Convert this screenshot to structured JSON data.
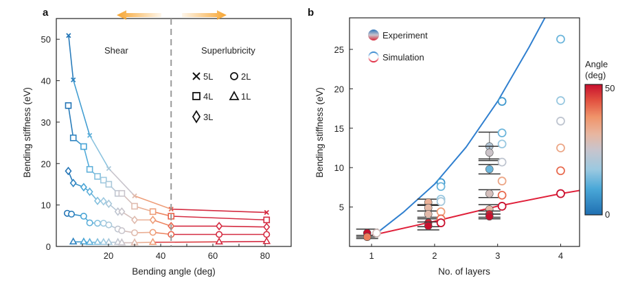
{
  "chart_data": [
    {
      "panel": "a",
      "type": "line",
      "title": "",
      "xlabel": "Bending angle (deg)",
      "ylabel": "Bending stiffness (eV)",
      "xlim": [
        0,
        90
      ],
      "ylim": [
        0,
        55
      ],
      "xticks": [
        20,
        40,
        60,
        80
      ],
      "yticks": [
        0,
        10,
        20,
        30,
        40,
        50
      ],
      "grid": false,
      "color_mapping": "line and marker color varies with bending angle: blue (small angle) to red (large angle)",
      "annotations": {
        "divider_angle": 44,
        "left_region": "Shear",
        "right_region": "Superlubricity"
      },
      "legend": {
        "placement": "upper-right",
        "entries": [
          {
            "label": "5L",
            "marker": "x"
          },
          {
            "label": "2L",
            "marker": "circle"
          },
          {
            "label": "4L",
            "marker": "square"
          },
          {
            "label": "1L",
            "marker": "triangle"
          },
          {
            "label": "3L",
            "marker": "diamond"
          }
        ]
      },
      "series": [
        {
          "name": "5L",
          "marker": "x",
          "x": [
            4.7,
            6.5,
            12.8,
            20.1,
            30.0,
            44.0,
            80.6
          ],
          "y": [
            50.9,
            40.2,
            26.8,
            18.8,
            12.2,
            9.0,
            8.2
          ]
        },
        {
          "name": "4L",
          "marker": "square",
          "x": [
            4.6,
            6.5,
            10.5,
            12.8,
            15.8,
            18.1,
            20.1,
            23.6,
            25.1,
            30.0,
            37.0,
            44.0,
            80.6
          ],
          "y": [
            34.0,
            26.2,
            24.1,
            18.6,
            16.9,
            16.0,
            15.0,
            12.8,
            12.8,
            9.7,
            8.4,
            7.3,
            6.4
          ]
        },
        {
          "name": "3L",
          "marker": "diamond",
          "x": [
            4.6,
            6.5,
            10.5,
            12.8,
            15.8,
            18.1,
            20.1,
            23.6,
            25.1,
            30.0,
            37.0,
            44.0,
            62.4,
            80.6
          ],
          "y": [
            18.2,
            15.3,
            14.3,
            13.2,
            11.0,
            10.9,
            10.3,
            8.4,
            8.4,
            6.4,
            6.4,
            4.9,
            4.9,
            4.7
          ]
        },
        {
          "name": "2L",
          "marker": "circle",
          "x": [
            4.2,
            5.8,
            10.5,
            12.8,
            15.8,
            18.1,
            20.1,
            23.6,
            25.1,
            30.0,
            37.0,
            44.0,
            62.4,
            80.6
          ],
          "y": [
            8.0,
            7.8,
            7.3,
            5.7,
            5.6,
            5.6,
            5.2,
            4.2,
            3.8,
            3.3,
            3.4,
            2.9,
            2.9,
            2.9
          ]
        },
        {
          "name": "1L",
          "marker": "triangle",
          "x": [
            6.5,
            10.5,
            12.8,
            15.8,
            18.1,
            20.1,
            23.6,
            25.1,
            30.0,
            37.0,
            62.4,
            80.6
          ],
          "y": [
            1.1,
            1.1,
            1.0,
            1.0,
            1.0,
            1.0,
            1.0,
            0.9,
            0.9,
            1.0,
            1.1,
            1.2
          ]
        }
      ]
    },
    {
      "panel": "b",
      "type": "scatter",
      "title": "",
      "xlabel": "No. of layers",
      "ylabel": "Bending stiffness (eV)",
      "xlim": [
        0.65,
        4.3
      ],
      "ylim": [
        0,
        29
      ],
      "xticks": [
        1,
        2,
        3,
        4
      ],
      "yticks": [
        5,
        10,
        15,
        20,
        25
      ],
      "grid": false,
      "legend": {
        "placement": "top-left",
        "entries": [
          {
            "label": "Experiment",
            "marker": "filled-circle"
          },
          {
            "label": "Simulation",
            "marker": "open-circle"
          }
        ]
      },
      "colorbar": {
        "title": "Angle\n(deg)",
        "title_line1": "Angle",
        "title_line2": "(deg)",
        "min": 0,
        "max": 50,
        "min_label": "0",
        "max_label": "50",
        "colors": [
          "#1f6fb2",
          "#4aa8d8",
          "#9cc9e0",
          "#c8c4cc",
          "#e8b6a0",
          "#f0946a",
          "#e2503f",
          "#c8102e"
        ]
      },
      "fit_lines": [
        {
          "name": "small-angle fit",
          "color": "#2f7fcf",
          "x": [
            1.1,
            1.5,
            2.0,
            2.5,
            3.0,
            3.5,
            3.75
          ],
          "y": [
            1.8,
            4.3,
            7.9,
            12.6,
            18.4,
            25.3,
            29.0
          ]
        },
        {
          "name": "large-angle fit",
          "color": "#e0203a",
          "x": [
            1.0,
            2.0,
            3.0,
            4.0,
            4.3
          ],
          "y": [
            1.4,
            3.2,
            5.1,
            6.7,
            7.1
          ]
        }
      ],
      "experiment": [
        {
          "layers": 0.93,
          "y": 1.7,
          "err": 0.5,
          "angle": 50
        },
        {
          "layers": 0.93,
          "y": 1.2,
          "err": 0.2,
          "angle": 38
        },
        {
          "layers": 1.9,
          "y": 5.6,
          "err": 0.4,
          "angle": 30
        },
        {
          "layers": 1.9,
          "y": 4.9,
          "err": 0.4,
          "angle": 28
        },
        {
          "layers": 1.9,
          "y": 4.1,
          "err": 0.4,
          "angle": 27
        },
        {
          "layers": 1.9,
          "y": 3.0,
          "err": 0.5,
          "angle": 48
        },
        {
          "layers": 1.9,
          "y": 2.6,
          "err": 0.5,
          "angle": 50
        },
        {
          "layers": 2.87,
          "y": 12.7,
          "err": 1.8,
          "angle": 18
        },
        {
          "layers": 2.87,
          "y": 11.9,
          "err": 0.8,
          "angle": 22
        },
        {
          "layers": 2.87,
          "y": 9.8,
          "err": 0.6,
          "angle": 10
        },
        {
          "layers": 2.87,
          "y": 6.7,
          "err": 0.5,
          "angle": 24
        },
        {
          "layers": 2.87,
          "y": 4.7,
          "err": 0.6,
          "angle": 28
        },
        {
          "layers": 2.87,
          "y": 4.1,
          "err": 0.4,
          "angle": 48
        },
        {
          "layers": 2.87,
          "y": 3.8,
          "err": 0.3,
          "angle": 50
        }
      ],
      "simulation": [
        {
          "layers": 1.08,
          "y": 1.7,
          "angle": 24
        },
        {
          "layers": 2.1,
          "y": 8.1,
          "angle": 5
        },
        {
          "layers": 2.1,
          "y": 7.6,
          "angle": 10
        },
        {
          "layers": 2.1,
          "y": 6.0,
          "angle": 14
        },
        {
          "layers": 2.1,
          "y": 5.7,
          "angle": 16
        },
        {
          "layers": 2.1,
          "y": 4.4,
          "angle": 34
        },
        {
          "layers": 2.1,
          "y": 3.5,
          "angle": 40
        },
        {
          "layers": 2.1,
          "y": 3.0,
          "angle": 50
        },
        {
          "layers": 3.07,
          "y": 18.4,
          "angle": 5
        },
        {
          "layers": 3.07,
          "y": 14.4,
          "angle": 10
        },
        {
          "layers": 3.07,
          "y": 13.0,
          "angle": 14
        },
        {
          "layers": 3.07,
          "y": 10.7,
          "angle": 20
        },
        {
          "layers": 3.07,
          "y": 8.3,
          "angle": 32
        },
        {
          "layers": 3.07,
          "y": 6.5,
          "angle": 40
        },
        {
          "layers": 3.07,
          "y": 5.1,
          "angle": 50
        },
        {
          "layers": 4.0,
          "y": 26.3,
          "angle": 10
        },
        {
          "layers": 4.0,
          "y": 18.5,
          "angle": 14
        },
        {
          "layers": 4.0,
          "y": 15.9,
          "angle": 20
        },
        {
          "layers": 4.0,
          "y": 12.5,
          "angle": 32
        },
        {
          "layers": 4.0,
          "y": 9.6,
          "angle": 40
        },
        {
          "layers": 4.0,
          "y": 6.7,
          "angle": 50
        }
      ]
    }
  ]
}
